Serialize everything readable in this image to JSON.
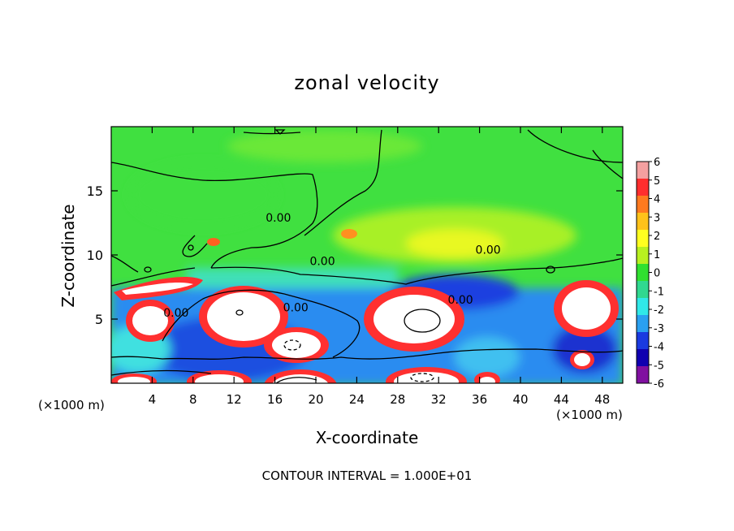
{
  "chart_data": {
    "type": "heatmap",
    "title": "zonal velocity",
    "xlabel": "X-coordinate",
    "ylabel": "Z-coordinate",
    "x_unit_label": "(×1000 m)",
    "y_unit_label": "(×1000 m)",
    "xlim": [
      0,
      50
    ],
    "ylim": [
      0,
      20
    ],
    "x_ticks": [
      4,
      8,
      12,
      16,
      20,
      24,
      28,
      32,
      36,
      40,
      44,
      48
    ],
    "y_ticks": [
      5,
      10,
      15
    ],
    "colorbar": {
      "min": -6,
      "max": 6,
      "tick_labels": [
        "6",
        "5",
        "4",
        "3",
        "2",
        "1",
        "0",
        "-1",
        "-2",
        "-3",
        "-4",
        "-5",
        "-6"
      ],
      "colors": [
        "#f4a0a0",
        "#ff2e2e",
        "#ff7a1f",
        "#ffc21a",
        "#ffff20",
        "#b8f020",
        "#30e030",
        "#30d890",
        "#30e8e8",
        "#2aa0f0",
        "#1a3ae0",
        "#1000b0",
        "#8010a0"
      ]
    },
    "contour_labels": [
      {
        "text": "0.00",
        "x": 15.1,
        "y": 12.6
      },
      {
        "text": "0.00",
        "x": 19.4,
        "y": 9.2
      },
      {
        "text": "0.00",
        "x": 35.6,
        "y": 10.1
      },
      {
        "text": "0.00",
        "x": 16.8,
        "y": 5.6
      },
      {
        "text": "0.00",
        "x": 5.1,
        "y": 5.2
      },
      {
        "text": "0.00",
        "x": 32.9,
        "y": 6.2
      }
    ],
    "footer": "CONTOUR INTERVAL = 1.000E+01",
    "grid": false
  }
}
